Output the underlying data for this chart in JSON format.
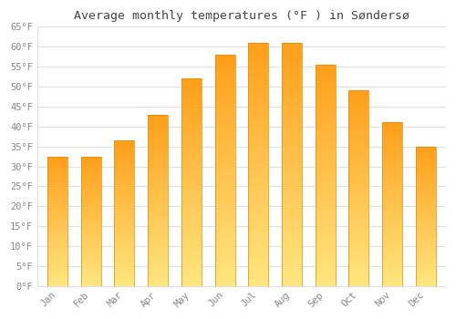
{
  "title": "Average monthly temperatures (°F ) in Søndersø",
  "months": [
    "Jan",
    "Feb",
    "Mar",
    "Apr",
    "May",
    "Jun",
    "Jul",
    "Aug",
    "Sep",
    "Oct",
    "Nov",
    "Dec"
  ],
  "values": [
    32.5,
    32.5,
    36.5,
    43.0,
    52.0,
    58.0,
    61.0,
    61.0,
    55.5,
    49.0,
    41.0,
    35.0
  ],
  "bar_color_bottom": "#FFE066",
  "bar_color_top": "#FFA500",
  "bar_edge_color": "#E88800",
  "ylim": [
    0,
    65
  ],
  "yticks": [
    0,
    5,
    10,
    15,
    20,
    25,
    30,
    35,
    40,
    45,
    50,
    55,
    60,
    65
  ],
  "ytick_labels": [
    "0°F",
    "5°F",
    "10°F",
    "15°F",
    "20°F",
    "25°F",
    "30°F",
    "35°F",
    "40°F",
    "45°F",
    "50°F",
    "55°F",
    "60°F",
    "65°F"
  ],
  "background_color": "#ffffff",
  "grid_color": "#e0e0e0",
  "title_fontsize": 9.5,
  "tick_fontsize": 7.5,
  "tick_color": "#888888",
  "title_color": "#444444",
  "bar_width": 0.6
}
